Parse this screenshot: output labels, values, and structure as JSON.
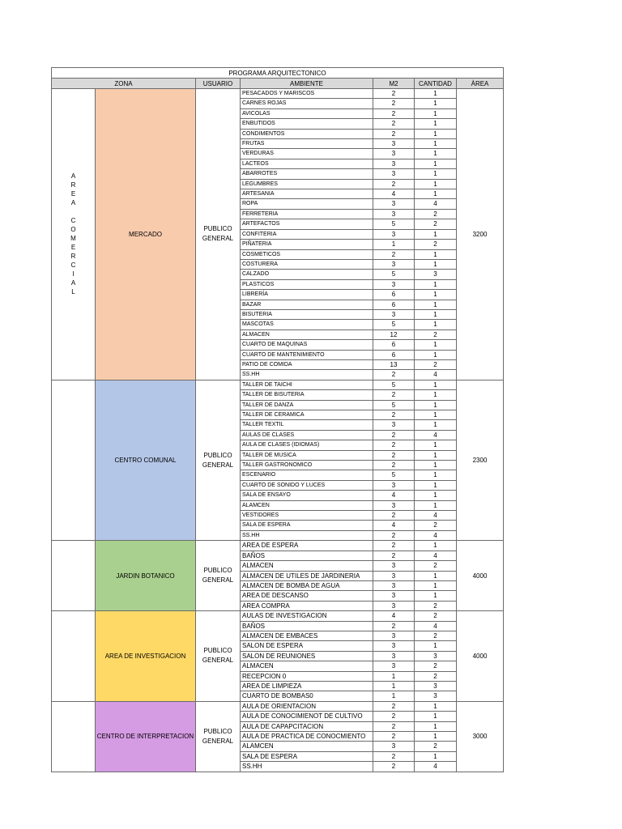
{
  "title": "PROGRAMA ARQUITECTONICO",
  "headers": {
    "zona": "ZONA",
    "usuario": "USUARIO",
    "ambiente": "AMBIENTE",
    "m2": "M2",
    "cantidad": "CANTIDAD",
    "area": "ÀREA"
  },
  "category": "AREA COMERCIAL",
  "zones": [
    {
      "name": "MERCADO",
      "user_line1": "PUBLICO",
      "user_line2": "GENERAL",
      "area": "3200",
      "color": "#f8cbad",
      "rows": [
        {
          "ambiente": "PESACADOS Y MARISCOS",
          "m2": "2",
          "cantidad": "1"
        },
        {
          "ambiente": "CARNES ROJAS",
          "m2": "2",
          "cantidad": "1"
        },
        {
          "ambiente": "AVICOLAS",
          "m2": "2",
          "cantidad": "1"
        },
        {
          "ambiente": "ENBUTIDOS",
          "m2": "2",
          "cantidad": "1"
        },
        {
          "ambiente": "CONDIMENTOS",
          "m2": "2",
          "cantidad": "1"
        },
        {
          "ambiente": "FRUTAS",
          "m2": "3",
          "cantidad": "1"
        },
        {
          "ambiente": "VERDURAS",
          "m2": "3",
          "cantidad": "1"
        },
        {
          "ambiente": "LACTEOS",
          "m2": "3",
          "cantidad": "1"
        },
        {
          "ambiente": "ABARROTES",
          "m2": "3",
          "cantidad": "1"
        },
        {
          "ambiente": "LEGUMBRES",
          "m2": "2",
          "cantidad": "1"
        },
        {
          "ambiente": "ARTESANIA",
          "m2": "4",
          "cantidad": "1"
        },
        {
          "ambiente": "ROPA",
          "m2": "3",
          "cantidad": "4"
        },
        {
          "ambiente": "FERRETERIA",
          "m2": "3",
          "cantidad": "2"
        },
        {
          "ambiente": "ARTEFACTOS",
          "m2": "5",
          "cantidad": "2"
        },
        {
          "ambiente": "CONFITERIA",
          "m2": "3",
          "cantidad": "1"
        },
        {
          "ambiente": "PIÑATERIA",
          "m2": "1",
          "cantidad": "2"
        },
        {
          "ambiente": "COSMETICOS",
          "m2": "2",
          "cantidad": "1"
        },
        {
          "ambiente": "COSTURERA",
          "m2": "3",
          "cantidad": "1"
        },
        {
          "ambiente": "CALZADO",
          "m2": "5",
          "cantidad": "3"
        },
        {
          "ambiente": "PLASTICOS",
          "m2": "3",
          "cantidad": "1"
        },
        {
          "ambiente": "LIBRERÍA",
          "m2": "6",
          "cantidad": "1"
        },
        {
          "ambiente": "BAZAR",
          "m2": "6",
          "cantidad": "1"
        },
        {
          "ambiente": "BISUTERIA",
          "m2": "3",
          "cantidad": "1"
        },
        {
          "ambiente": "MASCOTAS",
          "m2": "5",
          "cantidad": "1"
        },
        {
          "ambiente": "ALMACEN",
          "m2": "12",
          "cantidad": "2"
        },
        {
          "ambiente": "CUARTO DE MAQUINAS",
          "m2": "6",
          "cantidad": "1"
        },
        {
          "ambiente": "CUARTO DE MANTENIMIENTO",
          "m2": "6",
          "cantidad": "1"
        },
        {
          "ambiente": "PATIO DE COMIDA",
          "m2": "13",
          "cantidad": "2"
        },
        {
          "ambiente": "SS.HH",
          "m2": "2",
          "cantidad": "4"
        }
      ]
    },
    {
      "name": "CENTRO COMUNAL",
      "user_line1": "PUBLICO",
      "user_line2": "GENERAL",
      "area": "2300",
      "color": "#b4c6e7",
      "rows": [
        {
          "ambiente": "TALLER DE TAICHI",
          "m2": "5",
          "cantidad": "1"
        },
        {
          "ambiente": "TALLER DE BISUTERIA",
          "m2": "2",
          "cantidad": "1"
        },
        {
          "ambiente": "TALLER DE DANZA",
          "m2": "5",
          "cantidad": "1"
        },
        {
          "ambiente": "TALLER DE CERAMICA",
          "m2": "2",
          "cantidad": "1"
        },
        {
          "ambiente": "TALLER TEXTIL",
          "m2": "3",
          "cantidad": "1"
        },
        {
          "ambiente": "AULAS DE CLASES",
          "m2": "2",
          "cantidad": "4"
        },
        {
          "ambiente": "AULA DE CLASES (IDIOMAS)",
          "m2": "2",
          "cantidad": "1"
        },
        {
          "ambiente": "TALLER DE MUSICA",
          "m2": "2",
          "cantidad": "1"
        },
        {
          "ambiente": "TALLER GASTRONOMICO",
          "m2": "2",
          "cantidad": "1"
        },
        {
          "ambiente": "ESCENARIO",
          "m2": "5",
          "cantidad": "1"
        },
        {
          "ambiente": "CUARTO DE SONIDO Y LUCES",
          "m2": "3",
          "cantidad": "1"
        },
        {
          "ambiente": "SALA DE ENSAYO",
          "m2": "4",
          "cantidad": "1"
        },
        {
          "ambiente": "ALAMCEN",
          "m2": "3",
          "cantidad": "1"
        },
        {
          "ambiente": "VESTIDORES",
          "m2": "2",
          "cantidad": "4"
        },
        {
          "ambiente": "SALA DE ESPERA",
          "m2": "4",
          "cantidad": "2"
        },
        {
          "ambiente": "SS.HH",
          "m2": "2",
          "cantidad": "4"
        }
      ]
    },
    {
      "name": "JARDIN BOTANICO",
      "user_line1": "PUBLICO",
      "user_line2": "GENERAL",
      "area": "4000",
      "color": "#a9d08e",
      "rows": [
        {
          "ambiente": "AREA DE ESPERA",
          "m2": "2",
          "cantidad": "1"
        },
        {
          "ambiente": "BAÑOS",
          "m2": "2",
          "cantidad": "4"
        },
        {
          "ambiente": "ALMACEN",
          "m2": "3",
          "cantidad": "2"
        },
        {
          "ambiente": "ALMACEN DE UTILES DE JARDINERIA",
          "m2": "3",
          "cantidad": "1"
        },
        {
          "ambiente": "ALMACEN DE BOMBA DE AGUA",
          "m2": "3",
          "cantidad": "1"
        },
        {
          "ambiente": "AREA DE DESCANSO",
          "m2": "3",
          "cantidad": "1"
        },
        {
          "ambiente": "AREA COMPRA",
          "m2": "3",
          "cantidad": "2"
        }
      ]
    },
    {
      "name": "AREA DE INVESTIGACION",
      "user_line1": "PUBLICO",
      "user_line2": "GENERAL",
      "area": "4000",
      "color": "#ffd966",
      "rows": [
        {
          "ambiente": "AULAS DE INVESTIGACION",
          "m2": "4",
          "cantidad": "2"
        },
        {
          "ambiente": "BAÑOS",
          "m2": "2",
          "cantidad": "4"
        },
        {
          "ambiente": "ALMACEN DE EMBACES",
          "m2": "3",
          "cantidad": "2"
        },
        {
          "ambiente": "SALON DE ESPERA",
          "m2": "3",
          "cantidad": "1"
        },
        {
          "ambiente": "SALON DE REUNIONES",
          "m2": "3",
          "cantidad": "3"
        },
        {
          "ambiente": "ALMACEN",
          "m2": "3",
          "cantidad": "2"
        },
        {
          "ambiente": "RECEPCION 0",
          "m2": "1",
          "cantidad": "2"
        },
        {
          "ambiente": "AREA DE LIMPIEZA",
          "m2": "1",
          "cantidad": "3"
        },
        {
          "ambiente": "CUARTO DE BOMBAS0",
          "m2": "1",
          "cantidad": "3"
        }
      ]
    },
    {
      "name": "CENTRO DE INTERPRETACION",
      "user_line1": "PUBLICO",
      "user_line2": "GENERAL",
      "area": "3000",
      "color": "#d59be3",
      "rows": [
        {
          "ambiente": "AULA DE ORIENTACION",
          "m2": "2",
          "cantidad": "1"
        },
        {
          "ambiente": "AULA DE CONOCIMIENOT DE CULTIVO",
          "m2": "2",
          "cantidad": "1"
        },
        {
          "ambiente": "AULA DE CAPAPCITACION",
          "m2": "2",
          "cantidad": "1"
        },
        {
          "ambiente": "AULA DE PRACTICA DE CONOCMIENTO",
          "m2": "2",
          "cantidad": "1"
        },
        {
          "ambiente": "ALAMCEN",
          "m2": "3",
          "cantidad": "2"
        },
        {
          "ambiente": "SALA DE ESPERA",
          "m2": "2",
          "cantidad": "1"
        },
        {
          "ambiente": "SS.HH",
          "m2": "2",
          "cantidad": "4"
        }
      ]
    }
  ]
}
